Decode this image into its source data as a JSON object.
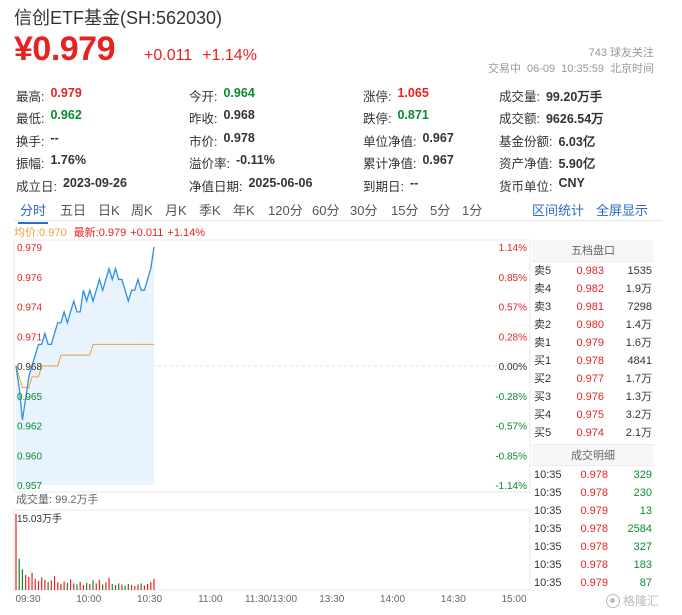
{
  "header": {
    "title": "信创ETF基金(SH:562030)",
    "price": "¥0.979",
    "change_abs": "+0.011",
    "change_pct": "+1.14%",
    "followers": "743 球友关注",
    "status": "交易中",
    "date": "06-09",
    "time": "10:35:59",
    "tz": "北京时间"
  },
  "stats": [
    [
      [
        "最高:",
        "0.979",
        "red"
      ],
      [
        "今开:",
        "0.964",
        "green"
      ],
      [
        "涨停:",
        "1.065",
        "red"
      ],
      [
        "成交量:",
        "99.20万手",
        ""
      ]
    ],
    [
      [
        "最低:",
        "0.962",
        "green"
      ],
      [
        "昨收:",
        "0.968",
        ""
      ],
      [
        "跌停:",
        "0.871",
        "green"
      ],
      [
        "成交额:",
        "9626.54万",
        ""
      ]
    ],
    [
      [
        "换手:",
        "--",
        ""
      ],
      [
        "市价:",
        "0.978",
        ""
      ],
      [
        "单位净值:",
        "0.967",
        ""
      ],
      [
        "基金份额:",
        "6.03亿",
        ""
      ]
    ],
    [
      [
        "振幅:",
        "1.76%",
        ""
      ],
      [
        "溢价率:",
        "-0.11%",
        ""
      ],
      [
        "累计净值:",
        "0.967",
        ""
      ],
      [
        "资产净值:",
        "5.90亿",
        ""
      ]
    ],
    [
      [
        "成立日:",
        "2023-09-26",
        ""
      ],
      [
        "净值日期:",
        "2025-06-06",
        ""
      ],
      [
        "到期日:",
        "--",
        ""
      ],
      [
        "货币单位:",
        "CNY",
        ""
      ]
    ]
  ],
  "tabs": [
    "分时",
    "五日",
    "日K",
    "周K",
    "月K",
    "季K",
    "年K",
    "120分",
    "60分",
    "30分",
    "15分",
    "5分",
    "1分"
  ],
  "tab_actions": [
    "区间统计",
    "全屏显示"
  ],
  "legend": {
    "avg": "均价:0.970",
    "latest": "最新:0.979",
    "chg": "+0.011",
    "pct": "+1.14%"
  },
  "chart_data": {
    "type": "line",
    "y_left_ticks": [
      "0.979",
      "0.976",
      "0.974",
      "0.971",
      "0.968",
      "0.965",
      "0.962",
      "0.960",
      "0.957"
    ],
    "y_right_ticks": [
      "1.14%",
      "0.85%",
      "0.57%",
      "0.28%",
      "0.00%",
      "-0.28%",
      "-0.57%",
      "-0.85%",
      "-1.14%"
    ],
    "ylim": [
      0.957,
      0.979
    ],
    "prev_close": 0.968,
    "x_ticks": [
      "09:30",
      "10:00",
      "10:30",
      "11:00",
      "11:30/13:00",
      "13:30",
      "14:00",
      "14:30",
      "15:00"
    ],
    "volume_label": "成交量: 99.2万手",
    "volume_max_label": "15.03万手",
    "price_series": [
      0.968,
      0.966,
      0.963,
      0.965,
      0.967,
      0.968,
      0.969,
      0.97,
      0.97,
      0.971,
      0.97,
      0.97,
      0.971,
      0.972,
      0.972,
      0.973,
      0.972,
      0.973,
      0.974,
      0.973,
      0.973,
      0.975,
      0.974,
      0.975,
      0.974,
      0.975,
      0.976,
      0.975,
      0.976,
      0.977,
      0.976,
      0.977,
      0.976,
      0.976,
      0.975,
      0.974,
      0.975,
      0.975,
      0.976,
      0.975,
      0.975,
      0.976,
      0.977,
      0.979
    ],
    "avg_series": [
      0.968,
      0.967,
      0.966,
      0.966,
      0.966,
      0.967,
      0.967,
      0.967,
      0.968,
      0.968,
      0.968,
      0.968,
      0.968,
      0.968,
      0.969,
      0.969,
      0.969,
      0.969,
      0.969,
      0.969,
      0.969,
      0.969,
      0.969,
      0.969,
      0.97,
      0.97,
      0.97,
      0.97,
      0.97,
      0.97,
      0.97,
      0.97,
      0.97,
      0.97,
      0.97,
      0.97,
      0.97,
      0.97,
      0.97,
      0.97,
      0.97,
      0.97,
      0.97,
      0.97
    ],
    "volume_series": [
      15.03,
      6.2,
      4.1,
      3.0,
      2.6,
      3.4,
      2.2,
      1.8,
      2.5,
      2.0,
      1.6,
      1.9,
      2.8,
      1.5,
      1.2,
      1.7,
      1.4,
      2.1,
      1.3,
      1.1,
      1.6,
      1.0,
      1.4,
      1.2,
      1.9,
      1.3,
      2.0,
      1.1,
      1.5,
      2.4,
      1.2,
      1.0,
      1.3,
      1.1,
      0.9,
      1.2,
      1.0,
      0.8,
      1.1,
      1.3,
      0.9,
      1.2,
      1.6,
      2.2
    ]
  },
  "orderbook": {
    "title": "五档盘口",
    "rows": [
      [
        "卖5",
        "0.983",
        "1535"
      ],
      [
        "卖4",
        "0.982",
        "1.9万"
      ],
      [
        "卖3",
        "0.981",
        "7298"
      ],
      [
        "卖2",
        "0.980",
        "1.4万"
      ],
      [
        "卖1",
        "0.979",
        "1.6万"
      ],
      [
        "买1",
        "0.978",
        "4841"
      ],
      [
        "买2",
        "0.977",
        "1.7万"
      ],
      [
        "买3",
        "0.976",
        "1.3万"
      ],
      [
        "买4",
        "0.975",
        "3.2万"
      ],
      [
        "买5",
        "0.974",
        "2.1万"
      ]
    ]
  },
  "deals": {
    "title": "成交明细",
    "rows": [
      [
        "10:35",
        "0.978",
        "329"
      ],
      [
        "10:35",
        "0.978",
        "230"
      ],
      [
        "10:35",
        "0.979",
        "13"
      ],
      [
        "10:35",
        "0.978",
        "2584"
      ],
      [
        "10:35",
        "0.978",
        "327"
      ],
      [
        "10:35",
        "0.978",
        "183"
      ],
      [
        "10:35",
        "0.979",
        "87"
      ]
    ]
  },
  "watermark": "格隆汇"
}
